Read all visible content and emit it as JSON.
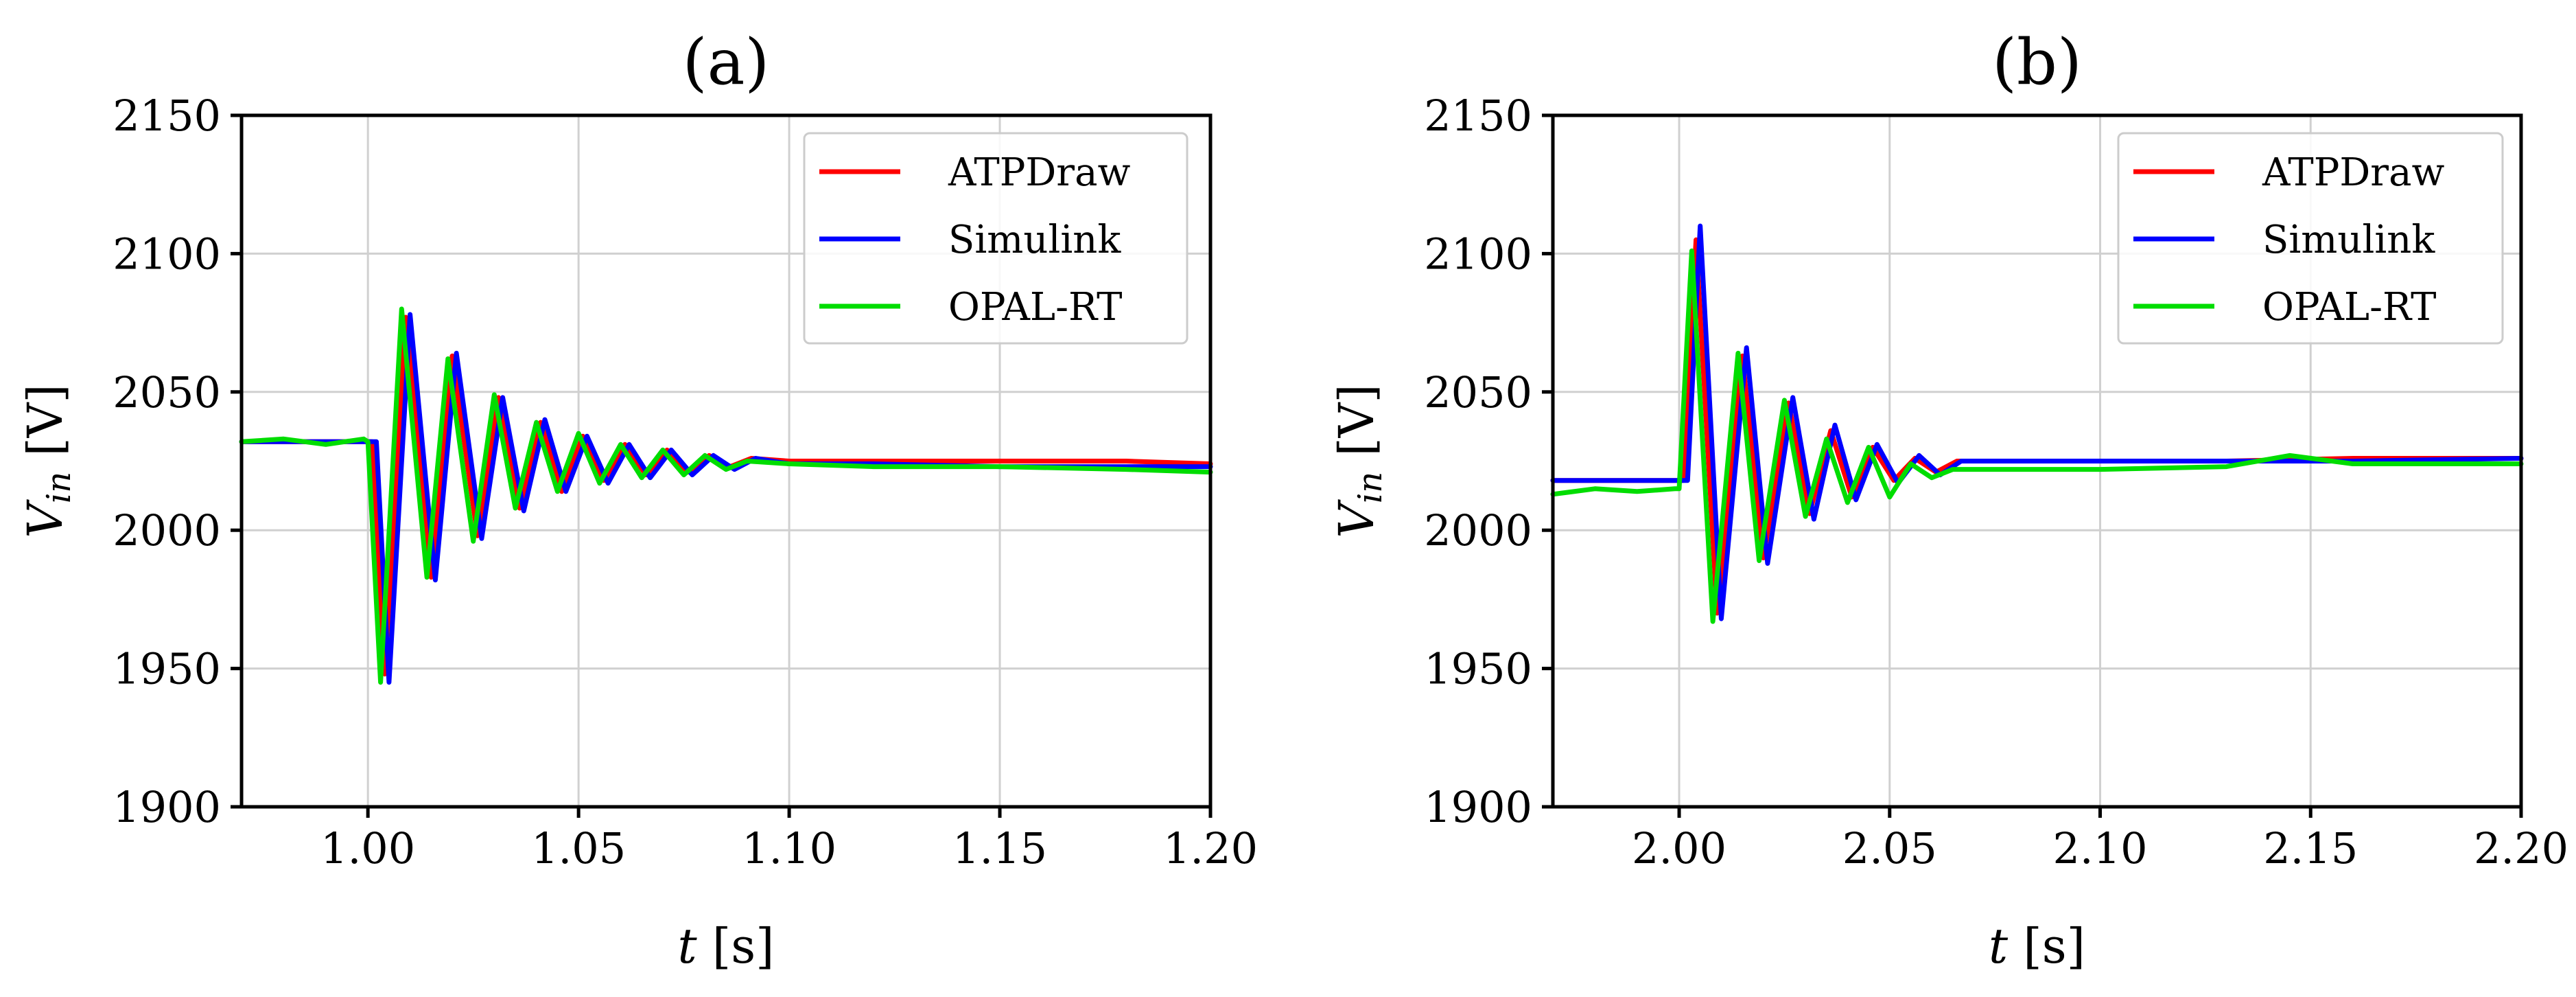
{
  "chart_data": [
    {
      "type": "line",
      "title": "(a)",
      "xlabel": "t [s]",
      "xlabel_var": "t",
      "xlabel_unit": "[s]",
      "ylabel": "V_in [V]",
      "ylabel_var": "V",
      "ylabel_sub": "in",
      "ylabel_unit": "[V]",
      "xlim": [
        0.97,
        1.2
      ],
      "ylim": [
        1900,
        2150
      ],
      "xticks": [
        1.0,
        1.05,
        1.1,
        1.15,
        1.2
      ],
      "xtick_labels": [
        "1.00",
        "1.05",
        "1.10",
        "1.15",
        "1.20"
      ],
      "yticks": [
        1900,
        1950,
        2000,
        2050,
        2100,
        2150
      ],
      "ytick_labels": [
        "1900",
        "1950",
        "2000",
        "2050",
        "2100",
        "2150"
      ],
      "grid": true,
      "legend_position": "top-right",
      "series": [
        {
          "name": "ATPDraw",
          "color": "#ff0000",
          "x": [
            0.97,
            0.98,
            0.99,
            1.0,
            1.001,
            1.004,
            1.009,
            1.015,
            1.02,
            1.026,
            1.031,
            1.036,
            1.041,
            1.046,
            1.051,
            1.056,
            1.061,
            1.066,
            1.071,
            1.076,
            1.081,
            1.086,
            1.091,
            1.1,
            1.12,
            1.15,
            1.18,
            1.2
          ],
          "y": [
            2032,
            2032,
            2032,
            2032,
            2032,
            1948,
            2077,
            1983,
            2063,
            1998,
            2048,
            2008,
            2039,
            2014,
            2034,
            2018,
            2031,
            2020,
            2029,
            2021,
            2027,
            2023,
            2026,
            2025,
            2025,
            2025,
            2025,
            2024
          ]
        },
        {
          "name": "Simulink",
          "color": "#0000ff",
          "x": [
            0.97,
            0.98,
            0.99,
            1.0,
            1.002,
            1.005,
            1.01,
            1.016,
            1.021,
            1.027,
            1.032,
            1.037,
            1.042,
            1.047,
            1.052,
            1.057,
            1.062,
            1.067,
            1.072,
            1.077,
            1.082,
            1.087,
            1.092,
            1.1,
            1.12,
            1.15,
            1.18,
            1.2
          ],
          "y": [
            2032,
            2032,
            2032,
            2032,
            2032,
            1945,
            2078,
            1982,
            2064,
            1997,
            2048,
            2007,
            2040,
            2014,
            2034,
            2017,
            2031,
            2019,
            2029,
            2020,
            2027,
            2022,
            2026,
            2024,
            2024,
            2023,
            2023,
            2023
          ]
        },
        {
          "name": "OPAL-RT",
          "color": "#00dd00",
          "x": [
            0.97,
            0.98,
            0.99,
            0.999,
            1.0,
            1.003,
            1.008,
            1.014,
            1.019,
            1.025,
            1.03,
            1.035,
            1.04,
            1.045,
            1.05,
            1.055,
            1.06,
            1.065,
            1.07,
            1.075,
            1.08,
            1.085,
            1.09,
            1.1,
            1.12,
            1.15,
            1.18,
            1.2
          ],
          "y": [
            2032,
            2033,
            2031,
            2033,
            2032,
            1945,
            2080,
            1983,
            2062,
            1996,
            2049,
            2008,
            2039,
            2014,
            2035,
            2017,
            2031,
            2019,
            2029,
            2020,
            2027,
            2022,
            2025,
            2024,
            2023,
            2023,
            2022,
            2021
          ]
        }
      ]
    },
    {
      "type": "line",
      "title": "(b)",
      "xlabel": "t [s]",
      "xlabel_var": "t",
      "xlabel_unit": "[s]",
      "ylabel": "V_in [V]",
      "ylabel_var": "V",
      "ylabel_sub": "in",
      "ylabel_unit": "[V]",
      "xlim": [
        1.97,
        2.2
      ],
      "ylim": [
        1900,
        2150
      ],
      "xticks": [
        2.0,
        2.05,
        2.1,
        2.15,
        2.2
      ],
      "xtick_labels": [
        "2.00",
        "2.05",
        "2.10",
        "2.15",
        "2.20"
      ],
      "yticks": [
        1900,
        1950,
        2000,
        2050,
        2100,
        2150
      ],
      "ytick_labels": [
        "1900",
        "1950",
        "2000",
        "2050",
        "2100",
        "2150"
      ],
      "grid": true,
      "legend_position": "top-right",
      "series": [
        {
          "name": "ATPDraw",
          "color": "#ff0000",
          "x": [
            1.97,
            1.98,
            1.99,
            2.0,
            2.001,
            2.004,
            2.009,
            2.015,
            2.02,
            2.026,
            2.031,
            2.036,
            2.041,
            2.046,
            2.051,
            2.056,
            2.061,
            2.066,
            2.07,
            2.1,
            2.13,
            2.16,
            2.2
          ],
          "y": [
            2018,
            2018,
            2018,
            2018,
            2018,
            2105,
            1970,
            2063,
            1990,
            2046,
            2006,
            2036,
            2012,
            2030,
            2018,
            2026,
            2021,
            2025,
            2025,
            2025,
            2025,
            2026,
            2026
          ]
        },
        {
          "name": "Simulink",
          "color": "#0000ff",
          "x": [
            1.97,
            1.98,
            1.99,
            2.0,
            2.002,
            2.005,
            2.01,
            2.016,
            2.021,
            2.027,
            2.032,
            2.037,
            2.042,
            2.047,
            2.052,
            2.057,
            2.062,
            2.067,
            2.07,
            2.1,
            2.13,
            2.16,
            2.2
          ],
          "y": [
            2018,
            2018,
            2018,
            2018,
            2018,
            2110,
            1968,
            2066,
            1988,
            2048,
            2004,
            2038,
            2011,
            2031,
            2017,
            2027,
            2020,
            2025,
            2025,
            2025,
            2025,
            2025,
            2026
          ]
        },
        {
          "name": "OPAL-RT",
          "color": "#00dd00",
          "x": [
            1.97,
            1.98,
            1.99,
            1.999,
            2.0,
            2.003,
            2.008,
            2.014,
            2.019,
            2.025,
            2.03,
            2.035,
            2.04,
            2.045,
            2.05,
            2.055,
            2.06,
            2.065,
            2.07,
            2.1,
            2.13,
            2.145,
            2.16,
            2.2
          ],
          "y": [
            2013,
            2015,
            2014,
            2015,
            2015,
            2101,
            1967,
            2064,
            1989,
            2047,
            2005,
            2033,
            2010,
            2030,
            2012,
            2024,
            2019,
            2022,
            2022,
            2022,
            2023,
            2027,
            2024,
            2024
          ]
        }
      ]
    }
  ]
}
